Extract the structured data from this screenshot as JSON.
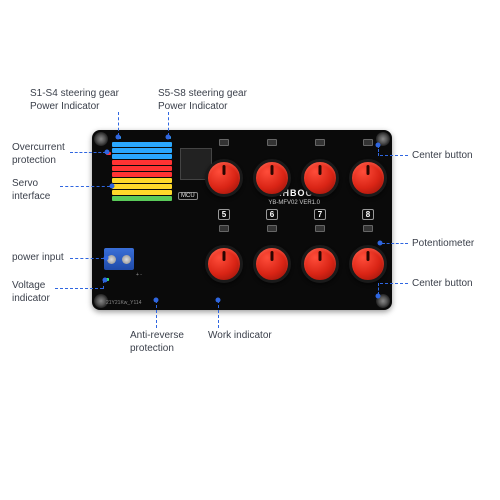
{
  "labels": {
    "s14": "S1-S4 steering gear\nPower Indicator",
    "s58": "S5-S8 steering gear\nPower Indicator",
    "overcurrent": "Overcurrent\nprotection",
    "servo": "Servo\ninterface",
    "power": "power input",
    "voltage": "Voltage\nindicator",
    "antireverse": "Anti-reverse\nprotection",
    "work": "Work indicator",
    "center_top": "Center button",
    "center_bot": "Center button",
    "pot": "Potentiometer"
  },
  "board": {
    "mcu": "MCU",
    "brand": "YAHBOOM",
    "model": "YB-MFV02  VER1.0",
    "bottom_silk": "21Y21Kw_Y114",
    "knob_numbers": [
      "5",
      "6",
      "7",
      "8"
    ],
    "pin_colors": [
      "#2aa8ff",
      "#2aa8ff",
      "#2aa8ff",
      "#ff3333",
      "#ff3333",
      "#ff3333",
      "#ffd92a",
      "#ffd92a",
      "#ffd92a",
      "#5acb5a"
    ],
    "terminal_sign": "+  -"
  },
  "style": {
    "bg": "#ffffff",
    "board_bg": "#0a0a0a",
    "lead_color": "#2f66e0",
    "label_color": "#3a3f4a",
    "knob_red": "#d92415",
    "terminal_blue": "#1f4aa8",
    "label_fontsize": 10
  }
}
